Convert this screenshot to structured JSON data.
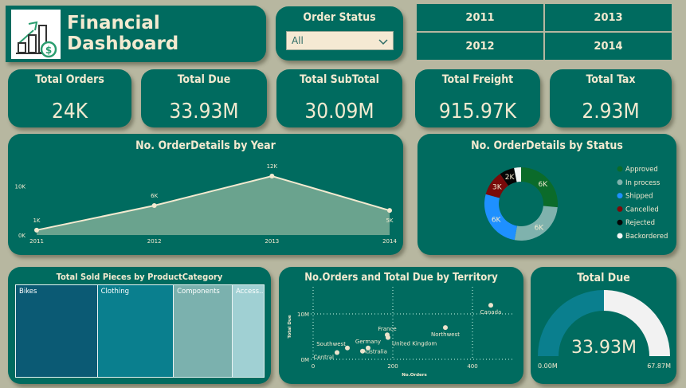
{
  "header": {
    "title": "Financial Dashboard",
    "logo_icon": "chart-growth-dollar-icon"
  },
  "slicer": {
    "label": "Order Status",
    "value": "All",
    "icon": "chevron-down-icon"
  },
  "years": [
    "2011",
    "2013",
    "2012",
    "2014"
  ],
  "kpis": [
    {
      "label": "Total Orders",
      "value": "24K"
    },
    {
      "label": "Total Due",
      "value": "33.93M"
    },
    {
      "label": "Total SubTotal",
      "value": "30.09M"
    },
    {
      "label": "Total Freight",
      "value": "915.97K"
    },
    {
      "label": "Total Tax",
      "value": "2.93M"
    }
  ],
  "colors": {
    "background": "#b7b7a0",
    "panel": "#006b5f",
    "text": "#f3ead0"
  },
  "chart_data": [
    {
      "type": "area",
      "title": "No. OrderDetails by Year",
      "categories": [
        "2011",
        "2012",
        "2013",
        "2014"
      ],
      "values": [
        1000,
        6000,
        12000,
        5000
      ],
      "data_labels": [
        "1K",
        "6K",
        "12K",
        "5K"
      ],
      "y_ticks": [
        "0K",
        "10K"
      ],
      "ylim": [
        0,
        12000
      ],
      "grid": false
    },
    {
      "type": "pie",
      "subtype": "donut",
      "title": "No. OrderDetails by Status",
      "legend": "right",
      "slices": [
        {
          "name": "Approved",
          "value": 6000,
          "label": "6K",
          "color": "#0b6b2a"
        },
        {
          "name": "In process",
          "value": 6000,
          "label": "6K",
          "color": "#7fb2ad"
        },
        {
          "name": "Shipped",
          "value": 6000,
          "label": "6K",
          "color": "#1e90ff"
        },
        {
          "name": "Cancelled",
          "value": 2500,
          "label": "3K",
          "color": "#7a0a0a"
        },
        {
          "name": "Rejected",
          "value": 1500,
          "label": "2K",
          "color": "#050505"
        },
        {
          "name": "Backordered",
          "value": 700,
          "label": "",
          "color": "#f4f7f7"
        }
      ]
    },
    {
      "type": "treemap",
      "title": "Total Sold Pieces by ProductCategory",
      "items": [
        {
          "name": "Bikes",
          "value": 33,
          "color": "#0b5a74"
        },
        {
          "name": "Clothing",
          "value": 31,
          "color": "#0a7f8e"
        },
        {
          "name": "Components",
          "value": 24,
          "color": "#7bb1ae"
        },
        {
          "name": "Access...",
          "value": 13,
          "color": "#a0d0d3"
        }
      ]
    },
    {
      "type": "scatter",
      "title": "No.Orders and Total Due by Territory",
      "xlabel": "No.Orders",
      "ylabel": "Total Due",
      "x_ticks": [
        {
          "v": 0,
          "t": "0"
        },
        {
          "v": 200,
          "t": "200"
        },
        {
          "v": 400,
          "t": "400"
        }
      ],
      "y_ticks": [
        {
          "v": 0,
          "t": "0M"
        },
        {
          "v": 10,
          "t": "10M"
        }
      ],
      "xlim": [
        0,
        470
      ],
      "ylim": [
        0,
        13
      ],
      "grid": true,
      "points": [
        {
          "name": "Canada",
          "x": 446,
          "y": 11.9
        },
        {
          "name": "Northwest",
          "x": 332,
          "y": 7.0
        },
        {
          "name": "France",
          "x": 186,
          "y": 5.4
        },
        {
          "name": "United Kingdom",
          "x": 188,
          "y": 4.8
        },
        {
          "name": "Germany",
          "x": 138,
          "y": 2.5
        },
        {
          "name": "Australia",
          "x": 124,
          "y": 1.8
        },
        {
          "name": "Southwest",
          "x": 86,
          "y": 2.5
        },
        {
          "name": "Central",
          "x": 60,
          "y": 1.5
        }
      ]
    },
    {
      "type": "gauge",
      "title": "Total Due",
      "value": 33.93,
      "min": 0,
      "max": 67.87,
      "value_label": "33.93M",
      "min_label": "0.00M",
      "max_label": "67.87M"
    }
  ]
}
